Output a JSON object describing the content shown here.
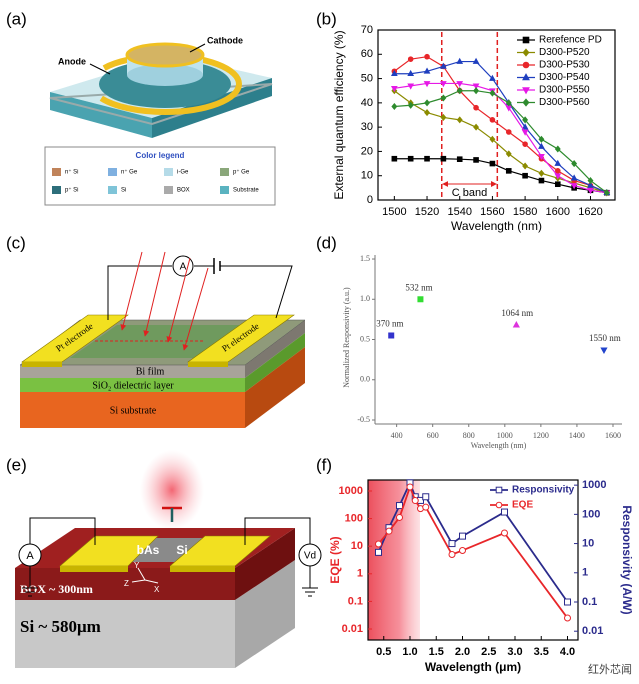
{
  "panel_labels": [
    "(a)",
    "(b)",
    "(c)",
    "(d)",
    "(e)",
    "(f)"
  ],
  "diagram_a": {
    "anode": "Anode",
    "cathode": "Cathode",
    "legend_title": "Color legend",
    "legend_items": [
      {
        "label": "n⁺ Si",
        "color": "#c0835a"
      },
      {
        "label": "n⁺ Ge",
        "color": "#7fb0e0"
      },
      {
        "label": "i-Ge",
        "color": "#b5dbe8"
      },
      {
        "label": "p⁺ Ge",
        "color": "#8aa77a"
      },
      {
        "label": "p⁺ Si",
        "color": "#2d6e7a"
      },
      {
        "label": "Si",
        "color": "#7fc4d8"
      },
      {
        "label": "BOX",
        "color": "#aaaaaa"
      },
      {
        "label": "Substrate",
        "color": "#5ab3c0"
      }
    ]
  },
  "diagram_c": {
    "meter": "A",
    "electrode_left": "Pt electrode",
    "electrode_right": "Pt electrode",
    "film": "Bi film",
    "dielectric": "SiO₂ dielectric layer",
    "substrate": "Si substrate"
  },
  "diagram_e": {
    "flake": "bAs",
    "channel": "Si",
    "box_layer": "BOX ~ 300nm",
    "substrate": "Si ~ 580μm",
    "ammeter": "A",
    "voltmeter": "Vd",
    "axis_y": "Y",
    "axis_z": "Z",
    "axis_x": "X"
  },
  "watermark": "红外芯闻",
  "chart_data": [
    {
      "type": "line",
      "x": [
        1500,
        1510,
        1520,
        1530,
        1540,
        1550,
        1560,
        1570,
        1580,
        1590,
        1600,
        1610,
        1620,
        1630
      ],
      "xlim": [
        1490,
        1635
      ],
      "xticks": [
        1500,
        1520,
        1540,
        1560,
        1580,
        1600,
        1620
      ],
      "ylim": [
        0,
        70
      ],
      "yticks": [
        0,
        10,
        20,
        30,
        40,
        50,
        60,
        70
      ],
      "xlabel": "Wavelength (nm)",
      "ylabel": "External quantum efficiency (%)",
      "frame": true,
      "legend": "upper right",
      "band_lines": [
        1529,
        1563
      ],
      "band_label": "C band",
      "series": [
        {
          "name": "Rerefence PD",
          "color": "#000000",
          "marker": "square",
          "values": [
            17,
            17,
            17,
            17,
            16.8,
            16.5,
            15,
            12,
            10,
            8,
            6.5,
            5,
            4,
            3
          ]
        },
        {
          "name": "D300-P520",
          "color": "#8b8b00",
          "marker": "diamond",
          "values": [
            45,
            40,
            36,
            34,
            33,
            30,
            25,
            19,
            14,
            11,
            9,
            7,
            5,
            3
          ]
        },
        {
          "name": "D300-P530",
          "color": "#e8262a",
          "marker": "circle",
          "values": [
            53,
            58,
            59,
            55,
            45,
            38,
            33,
            28,
            23,
            17,
            12,
            8,
            6,
            3
          ]
        },
        {
          "name": "D300-P540",
          "color": "#1f3fbf",
          "marker": "triangle",
          "values": [
            52,
            52,
            53,
            55,
            57,
            57,
            50,
            40,
            30,
            22,
            15,
            9,
            6,
            3
          ]
        },
        {
          "name": "D300-P550",
          "color": "#e619e6",
          "marker": "triangle-down",
          "values": [
            46,
            47,
            48,
            48,
            48,
            47,
            45,
            38,
            28,
            18,
            10,
            6,
            4,
            3
          ]
        },
        {
          "name": "D300-P560",
          "color": "#2e8b2e",
          "marker": "diamond",
          "values": [
            38.5,
            39,
            40,
            42,
            45,
            45,
            44,
            40,
            33,
            25,
            21,
            15,
            8,
            3
          ]
        }
      ]
    },
    {
      "type": "scatter",
      "x": [
        370,
        532,
        1064,
        1550
      ],
      "values": [
        0.55,
        1.0,
        0.68,
        0.37
      ],
      "point_labels": [
        "370 nm",
        "532 nm",
        "1064 nm",
        "1550 nm"
      ],
      "colors": [
        "#3333cc",
        "#33dd33",
        "#dd33dd",
        "#2244cc"
      ],
      "markers": [
        "square",
        "square",
        "triangle",
        "triangle-down"
      ],
      "xlim": [
        280,
        1650
      ],
      "xticks": [
        400,
        600,
        800,
        1000,
        1200,
        1400,
        1600
      ],
      "ylim": [
        -0.5,
        1.55
      ],
      "yticks": [
        -0.5,
        {
          "value": 0,
          "label": "0.0"
        },
        0.5,
        {
          "value": 1,
          "label": "1.0"
        },
        1.5
      ],
      "xlabel": "Wavelength (nm)",
      "ylabel": "Normalized Responsivity (a.u.)",
      "frame": false
    },
    {
      "type": "line",
      "x": [
        0.4,
        0.6,
        0.8,
        1.0,
        1.1,
        1.2,
        1.3,
        1.8,
        2.0,
        2.8,
        4.0
      ],
      "xlim": [
        0.2,
        4.2
      ],
      "xticks": [
        0.5,
        {
          "value": 1,
          "label": "1.0"
        },
        1.5,
        {
          "value": 2,
          "label": "2.0"
        },
        2.5,
        {
          "value": 3,
          "label": "3.0"
        },
        3.5,
        {
          "value": 4,
          "label": "4.0"
        }
      ],
      "yscale": "log",
      "ylim": [
        0.004,
        2500
      ],
      "yticks": [
        0.01,
        0.1,
        1,
        10,
        100,
        1000
      ],
      "y2lim": [
        0.005,
        1500
      ],
      "y2ticks": [
        0.01,
        0.1,
        1,
        10,
        100,
        1000
      ],
      "ycolor": "#e8262a",
      "y2color": "#2b2b8c",
      "xlabel": "Wavelength (μm)",
      "ylabel": "EQE (%)",
      "y2label": "Responsivity (A/W)",
      "frame": true,
      "legend": "upper right",
      "series": [
        {
          "name": "Responsivity",
          "color": "#2b2b8c",
          "marker": "square",
          "open": true,
          "axis": "y2",
          "values": [
            5,
            35,
            200,
            1200,
            400,
            300,
            400,
            10,
            18,
            120,
            0.1
          ]
        },
        {
          "name": "EQE",
          "color": "#e8262a",
          "marker": "circle",
          "open": true,
          "values": [
            12,
            35,
            110,
            1400,
            450,
            230,
            260,
            5,
            7,
            30,
            0.025
          ]
        }
      ]
    }
  ]
}
